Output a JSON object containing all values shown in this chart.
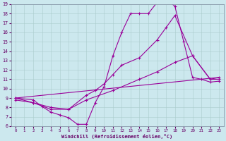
{
  "xlabel": "Windchill (Refroidissement éolien,°C)",
  "xlim": [
    -0.5,
    23.5
  ],
  "ylim": [
    6,
    19
  ],
  "xticks": [
    0,
    1,
    2,
    3,
    4,
    5,
    6,
    7,
    8,
    9,
    10,
    11,
    12,
    13,
    14,
    15,
    16,
    17,
    18,
    19,
    20,
    21,
    22,
    23
  ],
  "yticks": [
    6,
    7,
    8,
    9,
    10,
    11,
    12,
    13,
    14,
    15,
    16,
    17,
    18,
    19
  ],
  "bg_color": "#cce8ee",
  "line_color": "#990099",
  "grid_color": "#aacccc",
  "line1_x": [
    0,
    2,
    3,
    4,
    5,
    6,
    7,
    8,
    9,
    10,
    11,
    12,
    13,
    14,
    15,
    16,
    17,
    18,
    19,
    20,
    21,
    22,
    23
  ],
  "line1_y": [
    9,
    8.8,
    8.1,
    7.5,
    7.2,
    6.9,
    6.2,
    6.2,
    8.5,
    10.2,
    13.5,
    16.0,
    18.0,
    18.0,
    18.0,
    19.2,
    19.5,
    18.8,
    15.0,
    11.2,
    11.0,
    10.7,
    10.8
  ],
  "line2_x": [
    0,
    2,
    4,
    6,
    8,
    9,
    10,
    11,
    12,
    14,
    16,
    17,
    18,
    20,
    22,
    23
  ],
  "line2_y": [
    9,
    8.5,
    7.8,
    7.8,
    9.3,
    9.8,
    10.5,
    11.5,
    12.5,
    13.3,
    15.2,
    16.5,
    17.8,
    13.5,
    11.0,
    11.0
  ],
  "line3_x": [
    0,
    2,
    4,
    6,
    8,
    11,
    14,
    16,
    18,
    20,
    22,
    23
  ],
  "line3_y": [
    8.8,
    8.5,
    8.0,
    7.8,
    8.8,
    9.8,
    11.0,
    11.8,
    12.8,
    13.5,
    11.0,
    11.2
  ],
  "line4_x": [
    0,
    23
  ],
  "line4_y": [
    9.0,
    11.2
  ]
}
